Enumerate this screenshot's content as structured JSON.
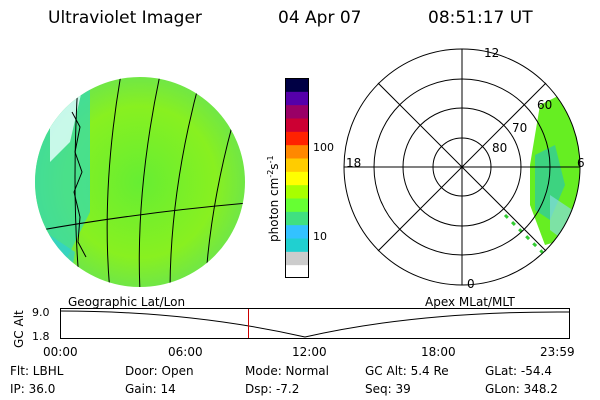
{
  "header": {
    "title": "Ultraviolet Imager",
    "date": "04 Apr 07",
    "time": "08:51:17 UT"
  },
  "colorbar": {
    "unit": "photon cm",
    "unit_exp": "-2",
    "unit_mid": "s",
    "unit_exp2": "-1",
    "tick_100": "100",
    "tick_10": "10",
    "colors": [
      "#ffffff",
      "#cccccc",
      "#20d0d0",
      "#33c2ff",
      "#40e080",
      "#66ff33",
      "#a8ff00",
      "#ffff00",
      "#ffcc00",
      "#ff8800",
      "#ff2200",
      "#cc0033",
      "#990066",
      "#5500aa",
      "#000044"
    ]
  },
  "left_panel": {
    "label": "Geographic Lat/Lon"
  },
  "polar_panel": {
    "label": "Apex  MLat/MLT",
    "mlt_top": "12",
    "mlt_left": "18",
    "mlt_right": "6",
    "mlt_bottom": "0",
    "lat_60": "60",
    "lat_70": "70",
    "lat_80": "80"
  },
  "altitude_plot": {
    "axis_label": "GC Alt",
    "y_top": "9.0",
    "y_bottom": "1.8",
    "times": [
      "00:00",
      "06:00",
      "12:00",
      "18:00",
      "23:59"
    ],
    "current_time_fraction": 0.37
  },
  "info": {
    "flt": "Flt: LBHL",
    "ip": "IP: 36.0",
    "door": "Door: Open",
    "gain": "Gain: 14",
    "mode": "Mode: Normal",
    "dsp": "Dsp:    -7.2",
    "gcalt": "GC Alt: 5.4 Re",
    "seq": "Seq: 39",
    "glat": "GLat:   -54.4",
    "glon": "GLon:  348.2"
  }
}
